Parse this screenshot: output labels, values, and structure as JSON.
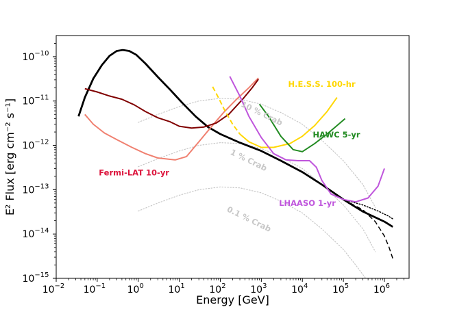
{
  "chart_data": {
    "type": "line",
    "xlabel": "Energy [GeV]",
    "ylabel": "E² Flux [erg cm⁻² s⁻¹]",
    "xscale": "log",
    "yscale": "log",
    "xlim": [
      0.01,
      4000000
    ],
    "ylim": [
      1e-15,
      3e-10
    ],
    "grid": false,
    "legend": "none",
    "x_ticks": [
      {
        "value": 0.01,
        "label": "10",
        "exp": "−2"
      },
      {
        "value": 0.1,
        "label": "10",
        "exp": "−1"
      },
      {
        "value": 1,
        "label": "10",
        "exp": "0"
      },
      {
        "value": 10,
        "label": "10",
        "exp": "1"
      },
      {
        "value": 100,
        "label": "10",
        "exp": "2"
      },
      {
        "value": 1000,
        "label": "10",
        "exp": "3"
      },
      {
        "value": 10000,
        "label": "10",
        "exp": "4"
      },
      {
        "value": 100000,
        "label": "10",
        "exp": "5"
      },
      {
        "value": 1000000,
        "label": "10",
        "exp": "6"
      }
    ],
    "y_ticks": [
      {
        "value": 1e-15,
        "label": "10",
        "exp": "−15"
      },
      {
        "value": 1e-14,
        "label": "10",
        "exp": "−14"
      },
      {
        "value": 1e-13,
        "label": "10",
        "exp": "−13"
      },
      {
        "value": 1e-12,
        "label": "10",
        "exp": "−12"
      },
      {
        "value": 1e-11,
        "label": "10",
        "exp": "−11"
      },
      {
        "value": 1e-10,
        "label": "10",
        "exp": "−10"
      }
    ],
    "series": [
      {
        "name": "",
        "color": "#000000",
        "style": "solid",
        "width": 2.8,
        "points": [
          [
            0.035,
            4.5e-12
          ],
          [
            0.05,
            1.2e-11
          ],
          [
            0.08,
            3.2e-11
          ],
          [
            0.13,
            6.5e-11
          ],
          [
            0.2,
            1.05e-10
          ],
          [
            0.3,
            1.35e-10
          ],
          [
            0.42,
            1.42e-10
          ],
          [
            0.6,
            1.35e-10
          ],
          [
            0.9,
            1.1e-10
          ],
          [
            1.5,
            7e-11
          ],
          [
            3,
            3.5e-11
          ],
          [
            6,
            1.8e-11
          ],
          [
            12,
            9e-12
          ],
          [
            25,
            4.5e-12
          ],
          [
            50,
            2.6e-12
          ],
          [
            100,
            1.8e-12
          ],
          [
            300,
            1.15e-12
          ],
          [
            1000,
            7.5e-13
          ],
          [
            3000,
            4.5e-13
          ],
          [
            10000,
            2.5e-13
          ],
          [
            30000,
            1.3e-13
          ],
          [
            100000,
            6e-14
          ],
          [
            300000,
            3.2e-14
          ],
          [
            1000000,
            1.9e-14
          ],
          [
            1600000,
            1.45e-14
          ]
        ]
      },
      {
        "name": "",
        "color": "#000000",
        "style": "dotted",
        "width": 1.5,
        "points": [
          [
            100000,
            6e-14
          ],
          [
            300000,
            4.5e-14
          ],
          [
            700000,
            3.3e-14
          ],
          [
            1200000,
            2.6e-14
          ],
          [
            1600000,
            2.2e-14
          ]
        ]
      },
      {
        "name": "",
        "color": "#000000",
        "style": "dashed",
        "width": 1.5,
        "points": [
          [
            100000,
            6e-14
          ],
          [
            300000,
            3.5e-14
          ],
          [
            600000,
            1.9e-14
          ],
          [
            1000000,
            9e-15
          ],
          [
            1300000,
            5e-15
          ],
          [
            1600000,
            2.8e-15
          ]
        ]
      },
      {
        "name": "Fermi-LAT 10-yr",
        "color": "#f08070",
        "style": "solid",
        "width": 2,
        "points": [
          [
            0.05,
            5e-12
          ],
          [
            0.08,
            3e-12
          ],
          [
            0.15,
            1.9e-12
          ],
          [
            0.3,
            1.35e-12
          ],
          [
            0.7,
            9e-13
          ],
          [
            1.5,
            6.5e-13
          ],
          [
            3,
            5.2e-13
          ],
          [
            8,
            4.7e-13
          ],
          [
            15,
            5.6e-13
          ],
          [
            30,
            1.2e-12
          ],
          [
            60,
            2.6e-12
          ],
          [
            120,
            5.5e-12
          ],
          [
            250,
            1.1e-11
          ],
          [
            500,
            2e-11
          ],
          [
            850,
            3.3e-11
          ]
        ]
      },
      {
        "name": "",
        "color": "#800000",
        "style": "solid",
        "width": 2,
        "points": [
          [
            0.05,
            1.9e-11
          ],
          [
            0.1,
            1.6e-11
          ],
          [
            0.2,
            1.3e-11
          ],
          [
            0.4,
            1.1e-11
          ],
          [
            0.8,
            8.2e-12
          ],
          [
            1.5,
            5.8e-12
          ],
          [
            3,
            4.2e-12
          ],
          [
            6,
            3.4e-12
          ],
          [
            10,
            2.7e-12
          ],
          [
            20,
            2.45e-12
          ],
          [
            40,
            2.6e-12
          ],
          [
            80,
            3.2e-12
          ],
          [
            160,
            5e-12
          ],
          [
            350,
            1.1e-11
          ],
          [
            600,
            2e-11
          ],
          [
            850,
            3.1e-11
          ]
        ]
      },
      {
        "name": "H.E.S.S. 100-hr",
        "color": "#ffd700",
        "style": "dashed",
        "width": 2,
        "points": [
          [
            65,
            2.1e-11
          ],
          [
            90,
            1.2e-11
          ],
          [
            130,
            6e-12
          ],
          [
            200,
            3e-12
          ],
          [
            300,
            1.8e-12
          ]
        ]
      },
      {
        "name": "H.E.S.S. 100-hr",
        "color": "#ffd700",
        "style": "solid",
        "width": 2,
        "points": [
          [
            300,
            1.8e-12
          ],
          [
            500,
            1.2e-12
          ],
          [
            1000,
            9e-13
          ],
          [
            2000,
            9e-13
          ],
          [
            5000,
            1.1e-12
          ],
          [
            10000,
            1.6e-12
          ],
          [
            20000,
            2.8e-12
          ],
          [
            40000,
            5.8e-12
          ],
          [
            70000,
            1.2e-11
          ]
        ]
      },
      {
        "name": "HAWC 5-yr",
        "color": "#228b22",
        "style": "solid",
        "width": 2,
        "points": [
          [
            900,
            8.5e-12
          ],
          [
            1500,
            4.5e-12
          ],
          [
            3000,
            1.6e-12
          ],
          [
            6000,
            8e-13
          ],
          [
            10000,
            7.2e-13
          ],
          [
            20000,
            1.1e-12
          ],
          [
            40000,
            1.8e-12
          ],
          [
            70000,
            2.8e-12
          ],
          [
            110000,
            4e-12
          ]
        ]
      },
      {
        "name": "LHAASO 1-yr",
        "color": "#bf55dc",
        "style": "solid",
        "width": 2,
        "points": [
          [
            170,
            3.6e-11
          ],
          [
            300,
            1.3e-11
          ],
          [
            500,
            4.5e-12
          ],
          [
            1000,
            1.5e-12
          ],
          [
            2000,
            6.5e-13
          ],
          [
            4000,
            4.7e-13
          ],
          [
            8000,
            4.5e-13
          ],
          [
            15000,
            4.5e-13
          ],
          [
            22000,
            3.2e-13
          ],
          [
            30000,
            1.6e-13
          ],
          [
            50000,
            8e-14
          ],
          [
            100000,
            6e-14
          ],
          [
            200000,
            5.3e-14
          ],
          [
            400000,
            6.5e-14
          ],
          [
            700000,
            1.2e-13
          ],
          [
            1000000,
            3e-13
          ]
        ]
      },
      {
        "name": "10 % Crab",
        "color": "#c8c8c8",
        "style": "dotted",
        "width": 1.2,
        "points": [
          [
            1,
            3.3e-12
          ],
          [
            3,
            5e-12
          ],
          [
            10,
            7.5e-12
          ],
          [
            30,
            1e-11
          ],
          [
            100,
            1.15e-11
          ],
          [
            300,
            1.1e-11
          ],
          [
            1000,
            8.5e-12
          ],
          [
            3000,
            5.5e-12
          ],
          [
            10000,
            3e-12
          ],
          [
            30000,
            1.3e-12
          ],
          [
            100000,
            4.5e-13
          ],
          [
            300000,
            1.3e-13
          ],
          [
            600000,
            4e-14
          ]
        ]
      },
      {
        "name": "1 % Crab",
        "color": "#c8c8c8",
        "style": "dotted",
        "width": 1.2,
        "points": [
          [
            1,
            3.3e-13
          ],
          [
            3,
            5e-13
          ],
          [
            10,
            7.5e-13
          ],
          [
            30,
            1e-12
          ],
          [
            100,
            1.15e-12
          ],
          [
            300,
            1.1e-12
          ],
          [
            1000,
            8.5e-13
          ],
          [
            3000,
            5.5e-13
          ],
          [
            10000,
            3e-13
          ],
          [
            30000,
            1.3e-13
          ],
          [
            100000,
            4.5e-14
          ],
          [
            300000,
            1.3e-14
          ],
          [
            600000,
            4e-15
          ]
        ]
      },
      {
        "name": "0.1 % Crab",
        "color": "#c8c8c8",
        "style": "dotted",
        "width": 1.2,
        "points": [
          [
            1,
            3.3e-14
          ],
          [
            3,
            5e-14
          ],
          [
            10,
            7.5e-14
          ],
          [
            30,
            1e-13
          ],
          [
            100,
            1.15e-13
          ],
          [
            300,
            1.1e-13
          ],
          [
            1000,
            8.5e-14
          ],
          [
            3000,
            5.5e-14
          ],
          [
            10000,
            3e-14
          ],
          [
            30000,
            1.3e-14
          ],
          [
            100000,
            4.5e-15
          ],
          [
            200000,
            2e-15
          ],
          [
            350000,
            1e-15
          ]
        ]
      }
    ],
    "annotations": [
      {
        "text": "H.E.S.S. 100-hr",
        "color": "#ffd700",
        "x": 4500,
        "y": 2.1e-11,
        "rotate": 0
      },
      {
        "text": "HAWC 5-yr",
        "color": "#228b22",
        "x": 18000,
        "y": 1.5e-12,
        "rotate": 0
      },
      {
        "text": "LHAASO 1-yr",
        "color": "#bf55dc",
        "x": 2700,
        "y": 4.3e-14,
        "rotate": 0
      },
      {
        "text": "Fermi-LAT 10-yr",
        "color": "#dc143c",
        "x": 0.11,
        "y": 2.1e-13,
        "rotate": 0
      },
      {
        "text": "10 % Crab",
        "color": "#c8c8c8",
        "x": 310,
        "y": 7.7e-12,
        "rotate": 26
      },
      {
        "text": "1 % Crab",
        "color": "#c8c8c8",
        "x": 170,
        "y": 6.4e-13,
        "rotate": 26
      },
      {
        "text": "0.1 % Crab",
        "color": "#c8c8c8",
        "x": 140,
        "y": 3.3e-14,
        "rotate": 26
      }
    ]
  }
}
